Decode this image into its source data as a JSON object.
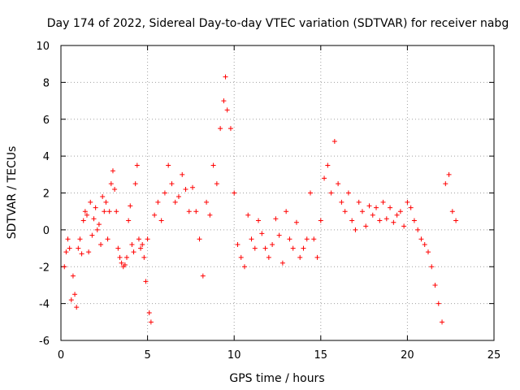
{
  "chart_data": {
    "type": "scatter",
    "title": "Day 174 of 2022, Sidereal Day-to-day VTEC variation (SDTVAR) for receiver nabg",
    "xlabel": "GPS time / hours",
    "ylabel": "SDTVAR / TECUs",
    "xlim": [
      0,
      25
    ],
    "ylim": [
      -6,
      10
    ],
    "xticks": [
      "0",
      "5",
      "10",
      "15",
      "20",
      "25"
    ],
    "yticks": [
      "-6",
      "-4",
      "-2",
      "0",
      "2",
      "4",
      "6",
      "8",
      "10"
    ],
    "grid": true,
    "marker": "+",
    "color": "#ff0000",
    "series": [
      {
        "name": "SDTVAR",
        "x": [
          0.2,
          0.3,
          0.4,
          0.5,
          0.6,
          0.7,
          0.8,
          0.9,
          1.0,
          1.1,
          1.2,
          1.3,
          1.4,
          1.5,
          1.6,
          1.7,
          1.8,
          1.9,
          2.0,
          2.1,
          2.2,
          2.3,
          2.4,
          2.5,
          2.6,
          2.7,
          2.8,
          2.9,
          3.0,
          3.1,
          3.2,
          3.3,
          3.4,
          3.5,
          3.6,
          3.7,
          3.8,
          3.9,
          4.0,
          4.1,
          4.2,
          4.3,
          4.4,
          4.5,
          4.6,
          4.7,
          4.8,
          4.9,
          5.0,
          5.1,
          5.2,
          5.4,
          5.6,
          5.8,
          6.0,
          6.2,
          6.4,
          6.6,
          6.8,
          7.0,
          7.2,
          7.4,
          7.6,
          7.8,
          8.0,
          8.2,
          8.4,
          8.6,
          8.8,
          9.0,
          9.2,
          9.4,
          9.5,
          9.6,
          9.8,
          10.0,
          10.2,
          10.4,
          10.6,
          10.8,
          11.0,
          11.2,
          11.4,
          11.6,
          11.8,
          12.0,
          12.2,
          12.4,
          12.6,
          12.8,
          13.0,
          13.2,
          13.4,
          13.6,
          13.8,
          14.0,
          14.2,
          14.4,
          14.6,
          14.8,
          15.0,
          15.2,
          15.4,
          15.6,
          15.8,
          16.0,
          16.2,
          16.4,
          16.6,
          16.8,
          17.0,
          17.2,
          17.4,
          17.6,
          17.8,
          18.0,
          18.2,
          18.4,
          18.6,
          18.8,
          19.0,
          19.2,
          19.4,
          19.6,
          19.8,
          20.0,
          20.2,
          20.4,
          20.6,
          20.8,
          21.0,
          21.2,
          21.4,
          21.6,
          21.8,
          22.0,
          22.2,
          22.4,
          22.6,
          22.8
        ],
        "y": [
          -2.0,
          -1.2,
          -0.5,
          -1.0,
          -3.8,
          -2.5,
          -3.5,
          -4.2,
          -1.0,
          -0.5,
          -1.3,
          0.5,
          1.0,
          0.8,
          -1.2,
          1.5,
          -0.3,
          0.6,
          1.2,
          0.0,
          0.3,
          -0.8,
          1.8,
          1.0,
          1.5,
          -0.5,
          1.0,
          2.5,
          3.2,
          2.2,
          1.0,
          -1.0,
          -1.5,
          -1.8,
          -2.0,
          -1.9,
          -1.5,
          0.5,
          1.3,
          -0.8,
          -1.2,
          2.5,
          3.5,
          -0.5,
          -1.0,
          -0.8,
          -1.5,
          -2.8,
          -0.5,
          -4.5,
          -5.0,
          0.8,
          1.5,
          0.5,
          2.0,
          3.5,
          2.5,
          1.5,
          1.8,
          3.0,
          2.2,
          1.0,
          2.3,
          1.0,
          -0.5,
          -2.5,
          1.5,
          0.8,
          3.5,
          2.5,
          5.5,
          7.0,
          8.3,
          6.5,
          5.5,
          2.0,
          -0.8,
          -1.5,
          -2.0,
          0.8,
          -0.5,
          -1.0,
          0.5,
          -0.2,
          -1.0,
          -1.5,
          -0.8,
          0.6,
          -0.3,
          -1.8,
          1.0,
          -0.5,
          -1.0,
          0.4,
          -1.5,
          -1.0,
          -0.5,
          2.0,
          -0.5,
          -1.5,
          0.5,
          2.8,
          3.5,
          2.0,
          4.8,
          2.5,
          1.5,
          1.0,
          2.0,
          0.5,
          0.0,
          1.5,
          1.0,
          0.2,
          1.3,
          0.8,
          1.2,
          0.5,
          1.5,
          0.6,
          1.2,
          0.4,
          0.8,
          1.0,
          0.2,
          1.5,
          1.2,
          0.5,
          0.0,
          -0.5,
          -0.8,
          -1.2,
          -2.0,
          -3.0,
          -4.0,
          -5.0,
          2.5,
          3.0,
          1.0,
          0.5
        ]
      }
    ]
  }
}
